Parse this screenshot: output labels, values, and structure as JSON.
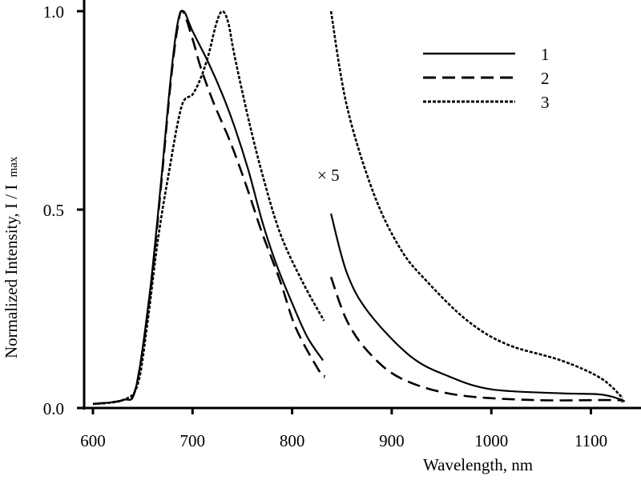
{
  "chart_data": {
    "type": "line",
    "title": "",
    "xlabel": "Wavelength, nm",
    "ylabel_main": "Normalized Intensity, I / I",
    "ylabel_sub": "max",
    "xlim": [
      590,
      1140
    ],
    "ylim": [
      0,
      1.0
    ],
    "xticks": [
      600,
      700,
      800,
      900,
      1000,
      1100
    ],
    "xtick_labels": [
      "600",
      "700",
      "800",
      "900",
      "1000",
      "1100"
    ],
    "yticks": [
      0,
      0.5,
      1.0
    ],
    "ytick_labels": [
      "0.0",
      "0.5",
      "1.0"
    ],
    "grid": false,
    "legend_position": "top-right",
    "annotation": "× 5",
    "series": [
      {
        "name": "1",
        "style": "solid",
        "segments": [
          {
            "x": [
              600,
              630,
              643,
              657,
              668,
              678,
              685,
              691,
              700,
              716,
              730,
              742,
              756,
              770,
              783,
              799,
              815,
              831
            ],
            "y": [
              0.01,
              0.02,
              0.05,
              0.29,
              0.56,
              0.83,
              0.97,
              1.0,
              0.95,
              0.87,
              0.79,
              0.71,
              0.6,
              0.47,
              0.37,
              0.27,
              0.18,
              0.12
            ]
          },
          {
            "x": [
              839,
              855,
              877,
              919,
              957,
              1000,
              1070,
              1110,
              1132
            ],
            "y": [
              0.49,
              0.34,
              0.24,
              0.13,
              0.08,
              0.047,
              0.037,
              0.034,
              0.02
            ]
          }
        ]
      },
      {
        "name": "2",
        "style": "dashed",
        "segments": [
          {
            "x": [
              600,
              630,
              643,
              657,
              668,
              678,
              685,
              690,
              700,
              708,
              721,
              738,
              754,
              770,
              788,
              804,
              828,
              833
            ],
            "y": [
              0.01,
              0.02,
              0.05,
              0.28,
              0.55,
              0.82,
              0.96,
              1.0,
              0.93,
              0.86,
              0.77,
              0.67,
              0.56,
              0.44,
              0.32,
              0.2,
              0.09,
              0.08
            ]
          },
          {
            "x": [
              839,
              855,
              877,
              909,
              963,
              1043,
              1124,
              1132
            ],
            "y": [
              0.33,
              0.22,
              0.14,
              0.075,
              0.034,
              0.02,
              0.02,
              0.015
            ]
          }
        ]
      },
      {
        "name": "3",
        "style": "dotted",
        "segments": [
          {
            "x": [
              600,
              630,
              645,
              655,
              665,
              676,
              689,
              700,
              708,
              716,
              724,
              730,
              736,
              742,
              756,
              770,
              788,
              810,
              832
            ],
            "y": [
              0.01,
              0.02,
              0.06,
              0.22,
              0.42,
              0.59,
              0.76,
              0.79,
              0.83,
              0.89,
              0.97,
              1.0,
              0.97,
              0.89,
              0.73,
              0.59,
              0.44,
              0.32,
              0.22
            ]
          },
          {
            "x": [
              839,
              855,
              882,
              909,
              935,
              976,
              1016,
              1070,
              1110,
              1132
            ],
            "y": [
              1.0,
              0.76,
              0.54,
              0.4,
              0.32,
              0.22,
              0.16,
              0.12,
              0.075,
              0.025
            ]
          }
        ]
      }
    ]
  }
}
